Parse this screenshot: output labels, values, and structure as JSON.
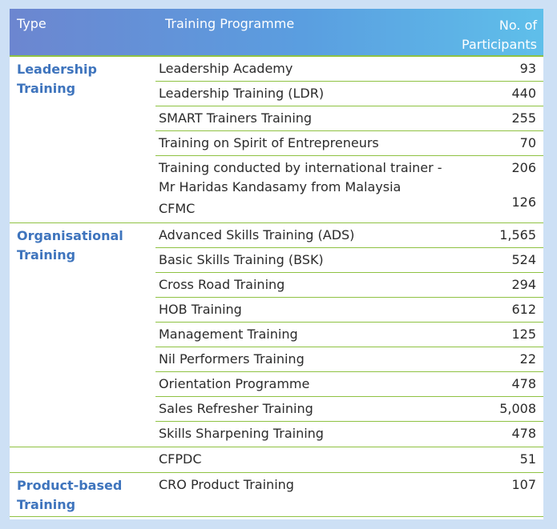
{
  "header": {
    "type": "Type",
    "programme": "Training Programme",
    "participants_line1": "No. of",
    "participants_line2": "Participants"
  },
  "groups": [
    {
      "type_line1": "Leadership",
      "type_line2": "Training",
      "rows": [
        {
          "name": "Leadership Academy",
          "count": "93"
        },
        {
          "name": "Leadership Training (LDR)",
          "count": "440"
        },
        {
          "name": "SMART Trainers Training",
          "count": "255"
        },
        {
          "name": "Training on Spirit of Entrepreneurs",
          "count": "70"
        },
        {
          "name_line1": "Training conducted by international trainer -",
          "name_line2": "Mr Haridas Kandasamy from Malaysia",
          "count": "206"
        },
        {
          "name": "CFMC",
          "count": "126"
        }
      ]
    },
    {
      "type_line1": "Organisational",
      "type_line2": "Training",
      "rows": [
        {
          "name": "Advanced Skills Training (ADS)",
          "count": "1,565"
        },
        {
          "name": "Basic Skills Training (BSK)",
          "count": "524"
        },
        {
          "name": "Cross Road Training",
          "count": "294"
        },
        {
          "name": "HOB Training",
          "count": "612"
        },
        {
          "name": "Management Training",
          "count": "125"
        },
        {
          "name": "Nil Performers Training",
          "count": "22"
        },
        {
          "name": "Orientation Programme",
          "count": "478"
        },
        {
          "name": "Sales Refresher Training",
          "count": "5,008"
        },
        {
          "name": "Skills Sharpening Training",
          "count": "478"
        }
      ]
    },
    {
      "rows": [
        {
          "name": "CFPDC",
          "count": "51"
        }
      ]
    },
    {
      "type_line1": "Product-based",
      "type_line2": "Training",
      "rows": [
        {
          "name": "CRO Product Training",
          "count": "107"
        }
      ]
    }
  ]
}
